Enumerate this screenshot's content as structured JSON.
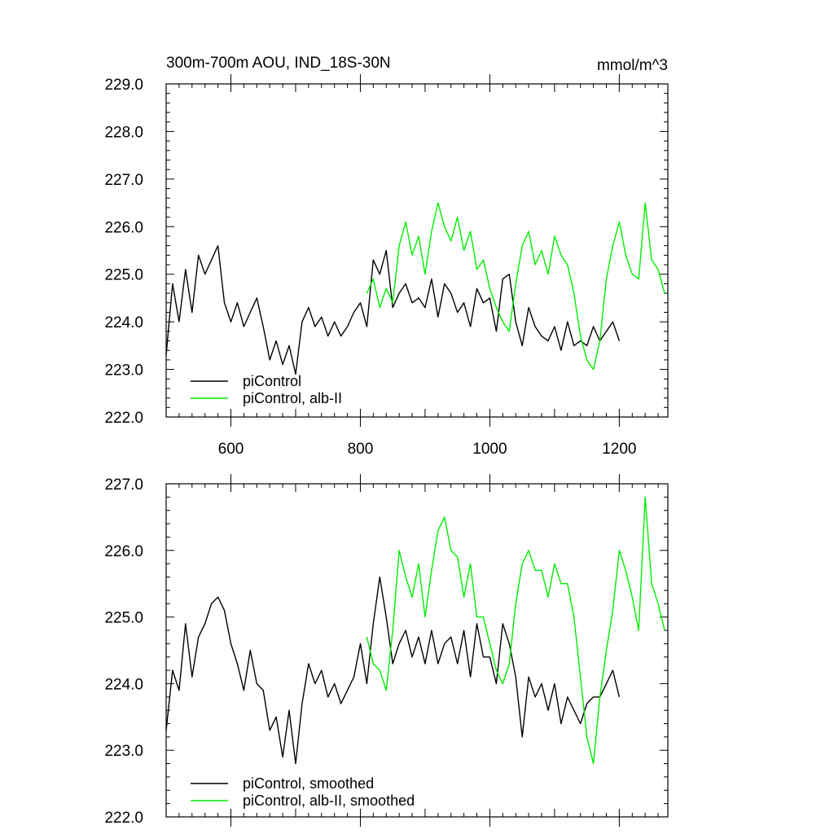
{
  "chart_data": [
    {
      "type": "line",
      "title": "300m-700m AOU, IND_18S-30N",
      "units": "mmol/m^3",
      "xlim": [
        500,
        1275
      ],
      "ylim": [
        222.0,
        229.0
      ],
      "x_ticks": [
        600,
        800,
        1000,
        1200
      ],
      "x_tick_labels": [
        "600",
        "800",
        "1000",
        "1200"
      ],
      "y_ticks": [
        222.0,
        223.0,
        224.0,
        225.0,
        226.0,
        227.0,
        228.0,
        229.0
      ],
      "y_tick_labels": [
        "222.0",
        "223.0",
        "224.0",
        "225.0",
        "226.0",
        "227.0",
        "228.0",
        "229.0"
      ],
      "legend_position": "bottom-left",
      "series": [
        {
          "name": "piControl",
          "color": "#000000",
          "x": [
            500,
            510,
            520,
            530,
            540,
            550,
            560,
            570,
            580,
            590,
            600,
            610,
            620,
            630,
            640,
            650,
            660,
            670,
            680,
            690,
            700,
            710,
            720,
            730,
            740,
            750,
            760,
            770,
            780,
            790,
            800,
            810,
            820,
            830,
            840,
            850,
            860,
            870,
            880,
            890,
            900,
            910,
            920,
            930,
            940,
            950,
            960,
            970,
            980,
            990,
            1000,
            1010,
            1020,
            1030,
            1040,
            1050,
            1060,
            1070,
            1080,
            1090,
            1100,
            1110,
            1120,
            1130,
            1140,
            1150,
            1160,
            1170,
            1180,
            1190,
            1200
          ],
          "y": [
            223.3,
            224.8,
            224.0,
            225.1,
            224.2,
            225.4,
            225.0,
            225.3,
            225.6,
            224.4,
            224.0,
            224.4,
            223.9,
            224.2,
            224.5,
            223.9,
            223.2,
            223.6,
            223.1,
            223.5,
            222.9,
            224.0,
            224.3,
            223.9,
            224.1,
            223.7,
            224.0,
            223.7,
            223.9,
            224.2,
            224.4,
            223.9,
            225.3,
            225.0,
            225.5,
            224.3,
            224.6,
            224.8,
            224.4,
            224.5,
            224.3,
            224.9,
            224.1,
            224.8,
            224.6,
            224.2,
            224.4,
            223.9,
            224.7,
            224.4,
            224.5,
            223.8,
            224.9,
            225.0,
            224.0,
            223.5,
            224.3,
            223.9,
            223.7,
            223.6,
            223.9,
            223.4,
            224.0,
            223.5,
            223.6,
            223.5,
            223.9,
            223.6,
            223.8,
            224.0,
            223.6
          ]
        },
        {
          "name": "piControl, alb-II",
          "color": "#00ee00",
          "x": [
            810,
            820,
            830,
            840,
            850,
            860,
            870,
            880,
            890,
            900,
            910,
            920,
            930,
            940,
            950,
            960,
            970,
            980,
            990,
            1000,
            1010,
            1020,
            1030,
            1040,
            1050,
            1060,
            1070,
            1080,
            1090,
            1100,
            1110,
            1120,
            1130,
            1140,
            1150,
            1160,
            1170,
            1180,
            1190,
            1200,
            1210,
            1220,
            1230,
            1240,
            1250,
            1260,
            1270
          ],
          "y": [
            224.6,
            224.9,
            224.3,
            224.7,
            224.4,
            225.6,
            226.1,
            225.4,
            225.8,
            225.0,
            225.9,
            226.5,
            226.0,
            225.7,
            226.2,
            225.5,
            225.9,
            225.1,
            225.3,
            224.7,
            224.3,
            224.0,
            223.8,
            224.8,
            225.6,
            225.9,
            225.2,
            225.5,
            225.0,
            225.8,
            225.4,
            225.2,
            224.6,
            223.7,
            223.2,
            223.0,
            223.6,
            224.9,
            225.6,
            226.1,
            225.4,
            225.0,
            224.9,
            226.5,
            225.3,
            225.1,
            224.6
          ]
        }
      ]
    },
    {
      "type": "line",
      "xlim": [
        500,
        1275
      ],
      "ylim": [
        222.0,
        227.0
      ],
      "x_ticks": [
        600,
        800,
        1000,
        1200
      ],
      "y_ticks": [
        222.0,
        223.0,
        224.0,
        225.0,
        226.0,
        227.0
      ],
      "y_tick_labels": [
        "222.0",
        "223.0",
        "224.0",
        "225.0",
        "226.0",
        "227.0"
      ],
      "legend_position": "bottom-left",
      "series": [
        {
          "name": "piControl, smoothed",
          "color": "#000000",
          "x": [
            500,
            510,
            520,
            530,
            540,
            550,
            560,
            570,
            580,
            590,
            600,
            610,
            620,
            630,
            640,
            650,
            660,
            670,
            680,
            690,
            700,
            710,
            720,
            730,
            740,
            750,
            760,
            770,
            780,
            790,
            800,
            810,
            820,
            830,
            840,
            850,
            860,
            870,
            880,
            890,
            900,
            910,
            920,
            930,
            940,
            950,
            960,
            970,
            980,
            990,
            1000,
            1010,
            1020,
            1030,
            1040,
            1050,
            1060,
            1070,
            1080,
            1090,
            1100,
            1110,
            1120,
            1130,
            1140,
            1150,
            1160,
            1170,
            1180,
            1190,
            1200
          ],
          "y": [
            223.3,
            224.2,
            223.9,
            224.9,
            224.1,
            224.7,
            224.9,
            225.2,
            225.3,
            225.1,
            224.6,
            224.3,
            223.9,
            224.5,
            224.0,
            223.9,
            223.3,
            223.5,
            222.9,
            223.6,
            222.8,
            223.7,
            224.3,
            224.0,
            224.2,
            223.8,
            224.0,
            223.7,
            223.9,
            224.1,
            224.6,
            224.0,
            224.9,
            225.6,
            225.0,
            224.3,
            224.6,
            224.8,
            224.4,
            224.7,
            224.3,
            224.8,
            224.3,
            224.6,
            224.7,
            224.3,
            224.8,
            224.1,
            224.9,
            224.4,
            224.4,
            224.0,
            224.9,
            224.6,
            224.1,
            223.2,
            224.1,
            223.8,
            224.0,
            223.6,
            224.0,
            223.4,
            223.8,
            223.6,
            223.4,
            223.7,
            223.8,
            223.8,
            224.0,
            224.2,
            223.8
          ]
        },
        {
          "name": "piControl, alb-II, smoothed",
          "color": "#00ee00",
          "x": [
            810,
            820,
            830,
            840,
            850,
            860,
            870,
            880,
            890,
            900,
            910,
            920,
            930,
            940,
            950,
            960,
            970,
            980,
            990,
            1000,
            1010,
            1020,
            1030,
            1040,
            1050,
            1060,
            1070,
            1080,
            1090,
            1100,
            1110,
            1120,
            1130,
            1140,
            1150,
            1160,
            1170,
            1180,
            1190,
            1200,
            1210,
            1220,
            1230,
            1240,
            1250,
            1260,
            1270
          ],
          "y": [
            224.7,
            224.3,
            224.2,
            223.9,
            224.8,
            226.0,
            225.6,
            225.3,
            225.8,
            225.0,
            225.7,
            226.3,
            226.5,
            226.0,
            225.9,
            225.3,
            225.8,
            225.0,
            225.0,
            224.6,
            224.2,
            224.0,
            224.3,
            225.2,
            225.8,
            226.0,
            225.7,
            225.7,
            225.3,
            225.8,
            225.5,
            225.5,
            225.0,
            224.1,
            223.2,
            222.8,
            223.8,
            224.5,
            225.1,
            226.0,
            225.7,
            225.3,
            224.8,
            226.8,
            225.5,
            225.2,
            224.8
          ]
        }
      ]
    }
  ]
}
